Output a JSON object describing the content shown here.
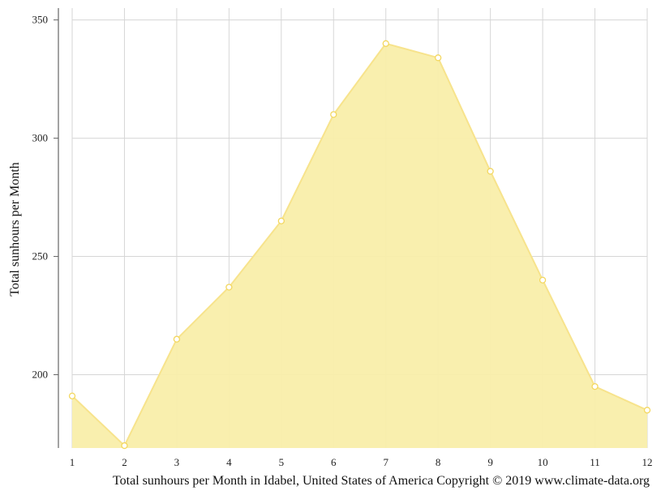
{
  "chart_data": {
    "type": "area",
    "x": [
      1,
      2,
      3,
      4,
      5,
      6,
      7,
      8,
      9,
      10,
      11,
      12
    ],
    "series": [
      {
        "values": [
          191,
          170,
          215,
          237,
          265,
          310,
          340,
          334,
          286,
          240,
          195,
          185
        ]
      }
    ],
    "ylabel": "Total sunhours per Month",
    "xlabel": "",
    "caption": "Total sunhours per Month in Idabel, United States of America Copyright © 2019 www.climate-data.org",
    "yticks": [
      "200",
      "250",
      "300",
      "350"
    ],
    "xticks": [
      "1",
      "2",
      "3",
      "4",
      "5",
      "6",
      "7",
      "8",
      "9",
      "10",
      "11",
      "12"
    ],
    "ylim": [
      169,
      355
    ],
    "xlim": [
      1,
      12
    ],
    "grid": true,
    "colors": {
      "fill": "#f9eeaa",
      "line": "#f7e38c",
      "marker": "#f3d75f",
      "grid": "#d6d6d6",
      "axis": "#666666"
    }
  }
}
